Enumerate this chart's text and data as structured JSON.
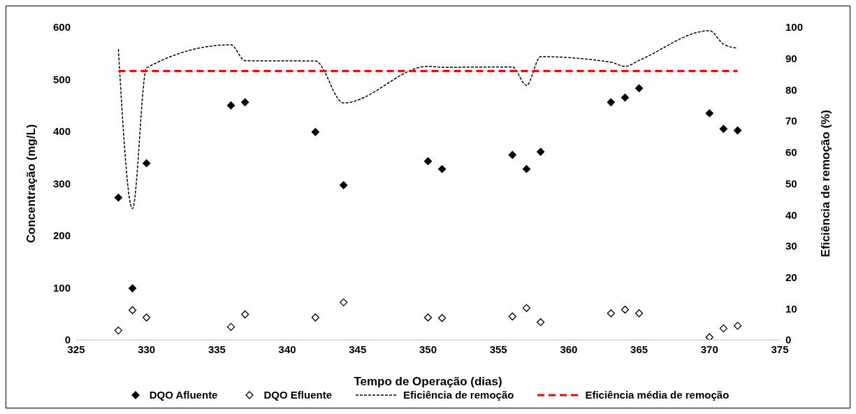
{
  "chart_data": {
    "type": "scatter",
    "xlabel": "Tempo de Operação (dias)",
    "ylabel": "Concentração (mg/L)",
    "y2label": "Eficiência de remoção (%)",
    "xlim": [
      325,
      375
    ],
    "xticks": [
      325,
      330,
      335,
      340,
      345,
      350,
      355,
      360,
      365,
      370,
      375
    ],
    "ylim": [
      0,
      600
    ],
    "yticks": [
      0,
      100,
      200,
      300,
      400,
      500,
      600
    ],
    "y2lim": [
      0,
      100
    ],
    "y2ticks": [
      0,
      10,
      20,
      30,
      40,
      50,
      60,
      70,
      80,
      90,
      100
    ],
    "legend": "bottom",
    "marker": "diamond",
    "x": [
      328,
      329,
      330,
      336,
      337,
      342,
      344,
      350,
      351,
      356,
      357,
      358,
      363,
      364,
      365,
      370,
      371,
      372
    ],
    "series": [
      {
        "name": "DQO Afluente",
        "color": "#000000",
        "values": [
          273,
          99,
          339,
          450,
          456,
          399,
          297,
          343,
          328,
          355,
          328,
          361,
          456,
          465,
          483,
          435,
          405,
          402
        ]
      },
      {
        "name": "DQO Efluente",
        "color": "#000000",
        "values": [
          18,
          57,
          43,
          25,
          49,
          43,
          72,
          43,
          42,
          45,
          61,
          34,
          51,
          58,
          51,
          5,
          22,
          27
        ]
      },
      {
        "name": "Eficiência de remoção",
        "type": "line",
        "axis": "y2",
        "color": "#000000",
        "line_style": "dotted",
        "marker": "none",
        "values": [
          93,
          42,
          87,
          94.4,
          89.3,
          89.2,
          75.8,
          87.5,
          87.2,
          87.3,
          81.4,
          90.6,
          88.8,
          87.5,
          89.4,
          98.9,
          94.6,
          93.3
        ]
      },
      {
        "name": "Eficiência média de remoção",
        "type": "line",
        "axis": "y2",
        "color": "#ff0000",
        "line_style": "dashed",
        "marker": "none",
        "x": [
          328,
          372
        ],
        "values": [
          86,
          86
        ]
      }
    ]
  }
}
